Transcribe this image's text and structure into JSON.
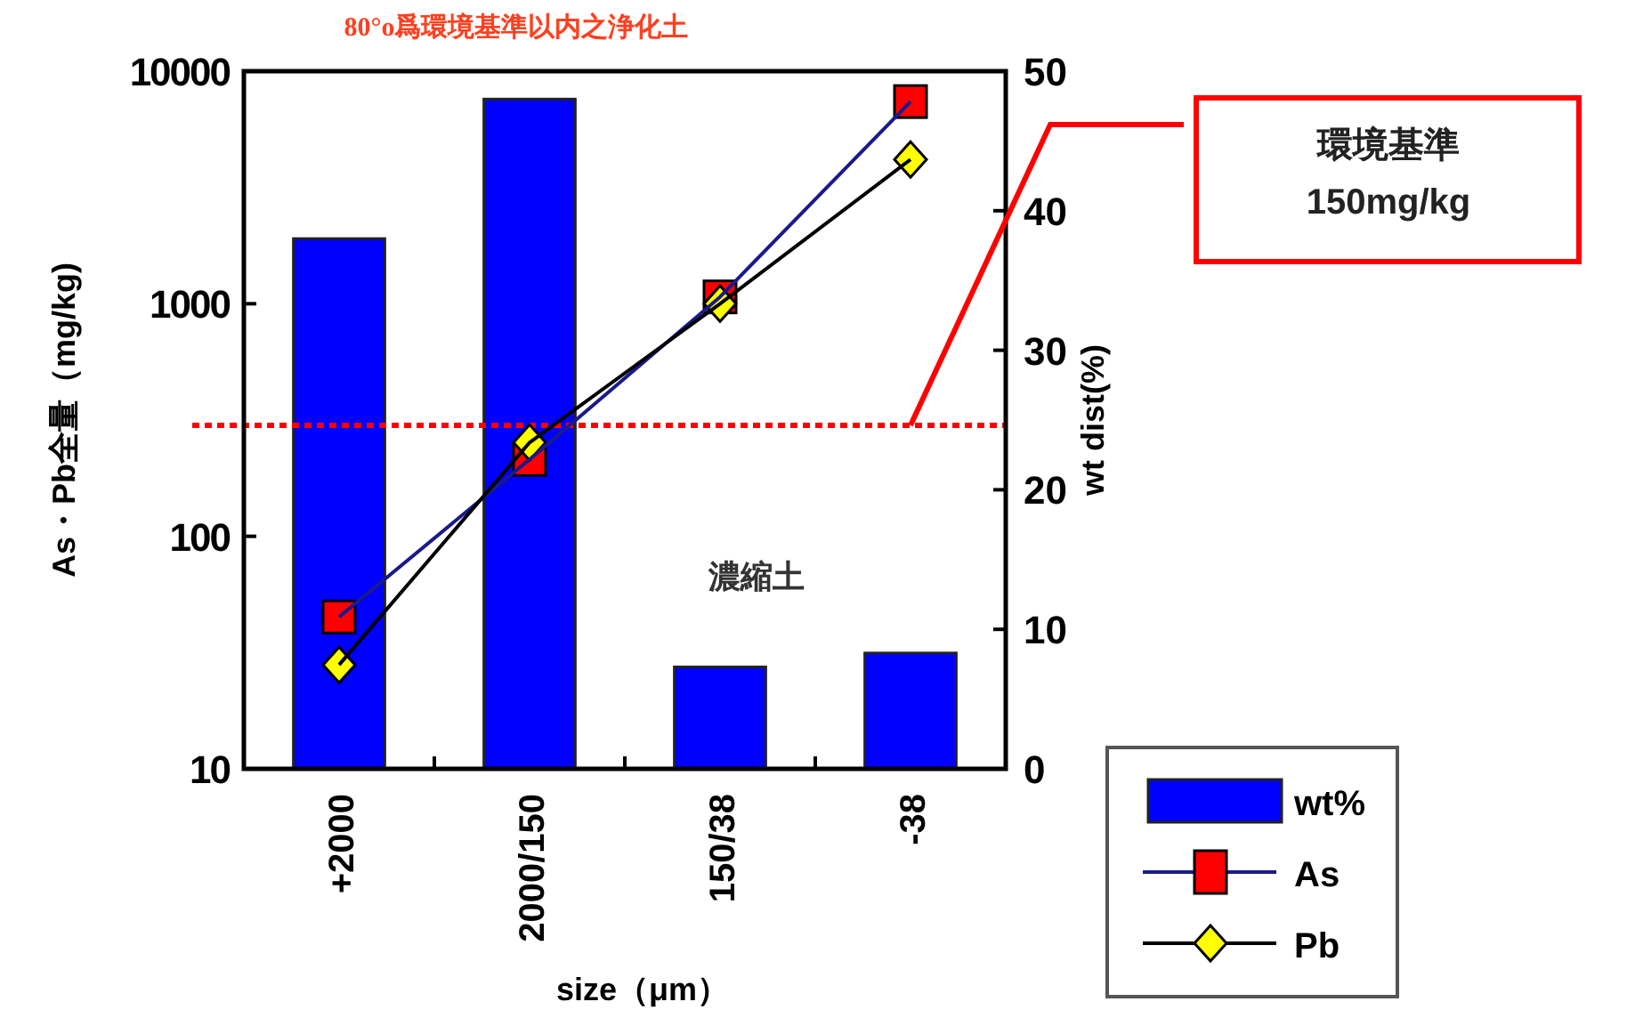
{
  "chart_data": {
    "type": "bar",
    "title": "80°o爲環境基準以内之浄化土",
    "xlabel": "size（μm）",
    "ylabel": "As・Pb全量（mg/kg)",
    "y2label": "wt dist(%)",
    "categories": [
      "+2000",
      "2000/150",
      "150/38",
      "-38"
    ],
    "series": [
      {
        "name": "wt%",
        "axis": "y2",
        "color": "#0000ff",
        "values": [
          38,
          48,
          7.3,
          8.3
        ]
      },
      {
        "name": "As",
        "type": "line",
        "marker": "square",
        "color": "#ff0000",
        "values": [
          45,
          214,
          1070,
          7400
        ]
      },
      {
        "name": "Pb",
        "type": "line",
        "marker": "diamond",
        "color": "#ffff00",
        "values": [
          28,
          253,
          1000,
          4170
        ]
      }
    ],
    "log": "y",
    "ylim": [
      10,
      10000
    ],
    "yticks": [
      10,
      100,
      1000,
      10000
    ],
    "y2lim": [
      0,
      50
    ],
    "y2ticks": [
      0,
      10,
      20,
      30,
      40,
      50
    ],
    "ref_lines": [
      {
        "axis": "y",
        "value": 300,
        "color": "#ff0000",
        "line_style": "dotted"
      }
    ],
    "annotations": [
      "環境基準\n150mg/kg",
      "濃縮土"
    ],
    "legend": "bottom right"
  }
}
